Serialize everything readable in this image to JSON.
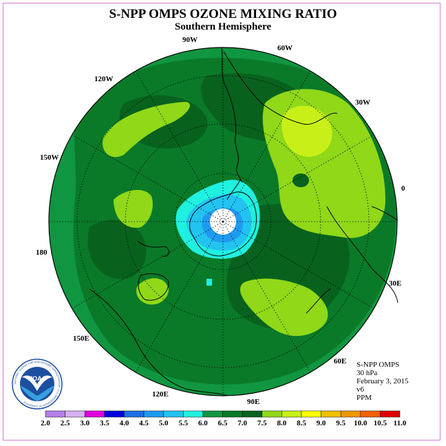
{
  "title": "S-NPP OMPS OZONE MIXING RATIO",
  "subtitle": "Southern Hemisphere",
  "longitude_labels": {
    "90w": "90W",
    "60w": "60W",
    "30w": "30W",
    "120w": "120W",
    "150w": "150W",
    "0": "0",
    "180": "180",
    "30e": "30E",
    "60e": "60E",
    "90e": "90E",
    "120e": "120E",
    "150e": "150E"
  },
  "info": {
    "instrument": "S-NPP OMPS",
    "level": "30 hPa",
    "date": "February 3, 2015",
    "version": "v6",
    "units": "PPM"
  },
  "logo": {
    "text": "NOAA",
    "ring_text": "NATIONAL OCEANIC AND ATMOSPHERIC ADMINISTRATION · U.S. DEPARTMENT OF COMMERCE"
  },
  "scale": {
    "ticks": [
      "2.0",
      "2.5",
      "3.0",
      "3.5",
      "4.0",
      "4.5",
      "5.0",
      "5.5",
      "6.0",
      "6.5",
      "7.0",
      "7.5",
      "8.0",
      "8.5",
      "9.0",
      "9.5",
      "10.0",
      "10.5",
      "11.0"
    ],
    "colors": [
      "#b57fe8",
      "#d7b0f2",
      "#e000e0",
      "#0000dd",
      "#1e6fe6",
      "#1e9bf0",
      "#22c3f0",
      "#20f0e0",
      "#109640",
      "#0a7a28",
      "#08621e",
      "#90d818",
      "#c8f018",
      "#ffff00",
      "#f0c000",
      "#f09600",
      "#f06000",
      "#e00000",
      "#805030"
    ]
  }
}
